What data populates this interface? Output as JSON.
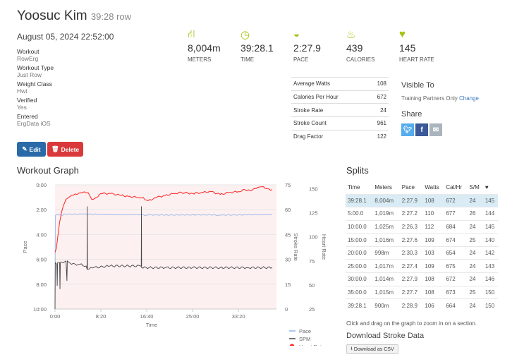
{
  "header": {
    "name": "Yoosuc Kim",
    "subtitle": "39:28 row",
    "date": "August 05, 2024 22:52:00"
  },
  "details": [
    {
      "label": "Workout",
      "value": "RowErg"
    },
    {
      "label": "Workout Type",
      "value": "Just Row"
    },
    {
      "label": "Weight Class",
      "value": "Hwt"
    },
    {
      "label": "Verified",
      "value": "Yes"
    },
    {
      "label": "Entered",
      "value": "ErgData iOS"
    }
  ],
  "actions": {
    "edit": "Edit",
    "delete": "Delete"
  },
  "stats": [
    {
      "icon": "road-icon",
      "value": "8,004m",
      "label": "METERS"
    },
    {
      "icon": "clock-icon",
      "value": "39:28.1",
      "label": "TIME"
    },
    {
      "icon": "speedometer-icon",
      "value": "2:27.9",
      "label": "PACE"
    },
    {
      "icon": "flame-icon",
      "value": "439",
      "label": "CALORIES"
    },
    {
      "icon": "heart-icon",
      "value": "145",
      "label": "HEART RATE"
    }
  ],
  "summary": [
    {
      "label": "Average Watts",
      "value": "108"
    },
    {
      "label": "Calories Per Hour",
      "value": "672"
    },
    {
      "label": "Stroke Rate",
      "value": "24"
    },
    {
      "label": "Stroke Count",
      "value": "961"
    },
    {
      "label": "Drag Factor",
      "value": "122"
    }
  ],
  "visibility": {
    "title": "Visible To",
    "value": "Training Partners Only",
    "change": "Change"
  },
  "share": {
    "title": "Share"
  },
  "colors": {
    "accent": "#a4c30e",
    "edit": "#2a6aa8",
    "delete": "#d9393a",
    "pace": "#8fb4e8",
    "spm": "#444444",
    "hr": "#ff2020",
    "highlight": "#d9ecf5"
  },
  "graph": {
    "title": "Workout Graph"
  },
  "chart_data": {
    "type": "line",
    "xlabel": "Time",
    "xticks": [
      "0:00",
      "8:20",
      "16:40",
      "25:00",
      "33:20"
    ],
    "xlim": [
      "0:00",
      "39:28"
    ],
    "axes": {
      "pace": {
        "label": "Pace",
        "ticks": [
          "0:00",
          "2:00",
          "4:00",
          "6:00",
          "8:00",
          "10:00"
        ],
        "range": [
          "0:00",
          "10:00"
        ],
        "reversed": true
      },
      "stroke_rate": {
        "label": "Stroke Rate",
        "ticks": [
          0,
          15,
          30,
          45,
          60,
          75
        ],
        "range": [
          0,
          75
        ]
      },
      "heart_rate": {
        "label": "Heart Rate",
        "ticks": [
          25,
          50,
          75,
          100,
          125,
          150
        ],
        "range": [
          25,
          154
        ]
      }
    },
    "grid": true,
    "legend_position": "bottom-right",
    "series": [
      {
        "name": "Pace",
        "axis": "pace",
        "points": [
          [
            "0:00",
            "10:00"
          ],
          [
            "0:03",
            "2:30"
          ],
          [
            "0:15",
            "2:22"
          ],
          [
            "0:40",
            "2:26"
          ],
          [
            "1:00",
            "2:25"
          ],
          [
            "1:20",
            "2:28"
          ],
          [
            "1:40",
            "2:20"
          ],
          [
            "2:00",
            "2:21"
          ],
          [
            "3:00",
            "2:22"
          ],
          [
            "5:00",
            "2:21"
          ],
          [
            "8:00",
            "2:22"
          ],
          [
            "10:00",
            "2:24"
          ],
          [
            "13:00",
            "2:24"
          ],
          [
            "16:00",
            "2:24"
          ],
          [
            "16:20",
            "2:28"
          ],
          [
            "17:00",
            "2:25"
          ],
          [
            "20:00",
            "2:26"
          ],
          [
            "25:00",
            "2:25"
          ],
          [
            "29:00",
            "2:25"
          ],
          [
            "29:30",
            "2:28"
          ],
          [
            "30:00",
            "2:26"
          ],
          [
            "35:00",
            "2:25"
          ],
          [
            "39:28",
            "2:23"
          ]
        ]
      },
      {
        "name": "SPM",
        "axis": "stroke_rate",
        "points": [
          [
            "0:00",
            0
          ],
          [
            "0:03",
            28
          ],
          [
            "0:20",
            27
          ],
          [
            "0:24",
            14
          ],
          [
            "0:28",
            28
          ],
          [
            "0:50",
            28
          ],
          [
            "0:54",
            12
          ],
          [
            "0:58",
            28
          ],
          [
            "1:30",
            28
          ],
          [
            "2:00",
            29
          ],
          [
            "2:10",
            17
          ],
          [
            "2:14",
            29
          ],
          [
            "3:00",
            27
          ],
          [
            "4:30",
            27
          ],
          [
            "5:40",
            26
          ],
          [
            "5:50",
            24
          ],
          [
            "5:52",
            62
          ],
          [
            "5:54",
            24
          ],
          [
            "7:00",
            25
          ],
          [
            "10:00",
            26
          ],
          [
            "15:30",
            26
          ],
          [
            "15:40",
            26
          ],
          [
            "15:42",
            62
          ],
          [
            "15:44",
            25
          ],
          [
            "20:00",
            25
          ],
          [
            "25:00",
            25
          ],
          [
            "30:00",
            25
          ],
          [
            "35:00",
            25
          ],
          [
            "39:28",
            25
          ]
        ]
      },
      {
        "name": "Heart Rate",
        "axis": "heart_rate",
        "points": [
          [
            "0:00",
            84
          ],
          [
            "0:15",
            88
          ],
          [
            "0:30",
            100
          ],
          [
            "0:50",
            115
          ],
          [
            "1:10",
            125
          ],
          [
            "1:30",
            132
          ],
          [
            "2:00",
            139
          ],
          [
            "2:30",
            141
          ],
          [
            "3:00",
            143
          ],
          [
            "4:00",
            144
          ],
          [
            "5:00",
            146
          ],
          [
            "6:00",
            146
          ],
          [
            "6:40",
            139
          ],
          [
            "7:30",
            141
          ],
          [
            "8:20",
            145
          ],
          [
            "10:00",
            145
          ],
          [
            "12:00",
            143
          ],
          [
            "13:20",
            142
          ],
          [
            "15:00",
            141
          ],
          [
            "16:00",
            141
          ],
          [
            "16:40",
            138
          ],
          [
            "17:30",
            138
          ],
          [
            "18:30",
            141
          ],
          [
            "20:00",
            143
          ],
          [
            "21:40",
            145
          ],
          [
            "23:00",
            146
          ],
          [
            "25:00",
            145
          ],
          [
            "26:40",
            146
          ],
          [
            "28:20",
            147
          ],
          [
            "30:00",
            144
          ],
          [
            "31:40",
            146
          ],
          [
            "33:20",
            147
          ],
          [
            "34:30",
            149
          ],
          [
            "35:30",
            148
          ],
          [
            "36:30",
            150
          ],
          [
            "37:30",
            152
          ],
          [
            "38:30",
            150
          ],
          [
            "39:28",
            149
          ]
        ]
      }
    ]
  },
  "splits": {
    "title": "Splits",
    "columns": [
      "Time",
      "Meters",
      "Pace",
      "Watts",
      "Cal/Hr",
      "S/M"
    ],
    "hr_icon": "heart-icon",
    "rows": [
      [
        "39:28.1",
        "8,004m",
        "2:27.9",
        "108",
        "672",
        "24",
        "145"
      ],
      [
        "5:00.0",
        "1,019m",
        "2:27.2",
        "110",
        "677",
        "26",
        "144"
      ],
      [
        "10:00.0",
        "1,025m",
        "2:26.3",
        "112",
        "684",
        "24",
        "145"
      ],
      [
        "15:00.0",
        "1,016m",
        "2:27.6",
        "109",
        "674",
        "25",
        "140"
      ],
      [
        "20:00.0",
        "998m",
        "2:30.3",
        "103",
        "654",
        "24",
        "142"
      ],
      [
        "25:00.0",
        "1,017m",
        "2:27.4",
        "109",
        "675",
        "24",
        "143"
      ],
      [
        "30:00.0",
        "1,014m",
        "2:27.9",
        "108",
        "672",
        "24",
        "146"
      ],
      [
        "35:00.0",
        "1,015m",
        "2:27.7",
        "108",
        "673",
        "25",
        "150"
      ],
      [
        "39:28.1",
        "900m",
        "2:28.9",
        "106",
        "664",
        "24",
        "150"
      ]
    ]
  },
  "hint": "Click and drag on the graph to zoom in on a section.",
  "download": {
    "title": "Download Stroke Data",
    "button": "Download as CSV"
  }
}
